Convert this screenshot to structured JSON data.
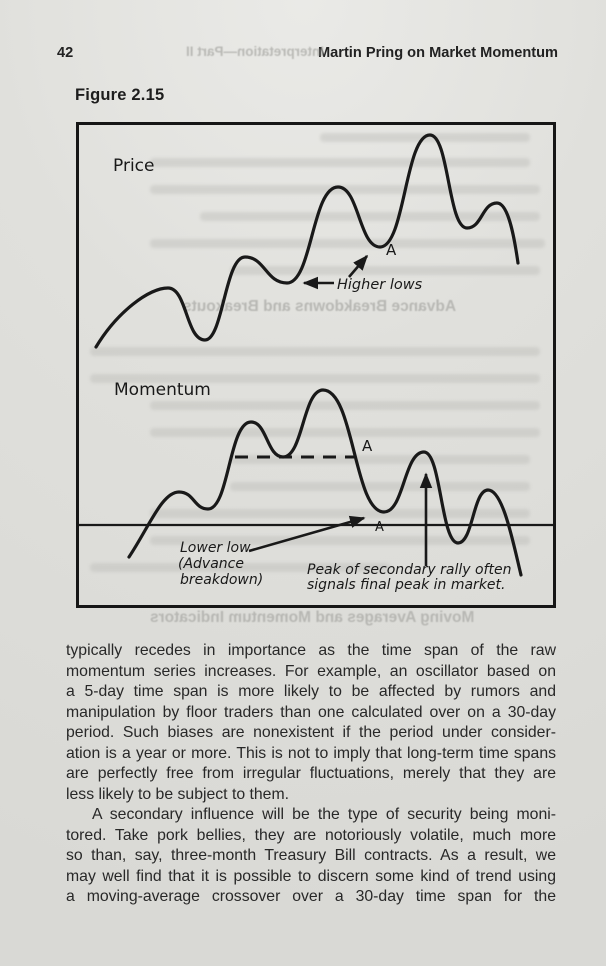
{
  "page": {
    "page_number": "42",
    "running_header": "Martin Pring on Market Momentum",
    "figure_label": "Figure 2.15"
  },
  "figure": {
    "price_label": "Price",
    "momentum_label": "Momentum",
    "point_a_price": "A",
    "point_a_momentum": "A",
    "point_a_zero": "A",
    "higher_lows": "Higher lows",
    "lower_low_line1": "Lower low",
    "lower_low_line2": "(Advance",
    "lower_low_line3": "breakdown)",
    "peak_note_line1": "Peak of secondary rally often",
    "peak_note_line2": "signals final peak in market.",
    "description": "Two stacked stylized line curves: a Price curve making higher lows into a final market peak, and a Momentum oscillator around a zero line that makes a lower low (advance breakdown); the peak of the secondary momentum rally coincides with the final price peak."
  },
  "colors": {
    "paper": "#dcdcd8",
    "ink": "#191919",
    "body_text": "#282828"
  },
  "bleed_through": {
    "header_reverse": "Interpretation—Part II",
    "heading_mid_reverse": "Advance Breakdowns and Breakouts",
    "heading_bottom_reverse": "Moving Averages and Momentum Indicators"
  },
  "body": {
    "paragraphs": [
      {
        "indent": false,
        "justify_last": false,
        "lines": [
          "typically recedes in importance as the time span of the raw",
          "momentum series increases. For example, an oscillator based on",
          "a 5-day time span is more likely to be affected by rumors and",
          "manipulation by floor traders than one calculated over on a 30-day",
          "period. Such biases are nonexistent if the period under consider-",
          "ation is a year or more. This is not to imply that long-term time spans",
          "are perfectly free from irregular fluctuations, merely that they are",
          "less likely to be subject to them."
        ]
      },
      {
        "indent": true,
        "justify_last": true,
        "lines": [
          "A secondary influence will be the type of security being moni-",
          "tored. Take pork bellies, they are notoriously volatile, much more",
          "so than, say, three-month Treasury Bill contracts. As a result, we",
          "may well find that it is possible to discern some kind of trend using",
          "a moving-average crossover over a 30-day time span for the"
        ]
      }
    ]
  }
}
